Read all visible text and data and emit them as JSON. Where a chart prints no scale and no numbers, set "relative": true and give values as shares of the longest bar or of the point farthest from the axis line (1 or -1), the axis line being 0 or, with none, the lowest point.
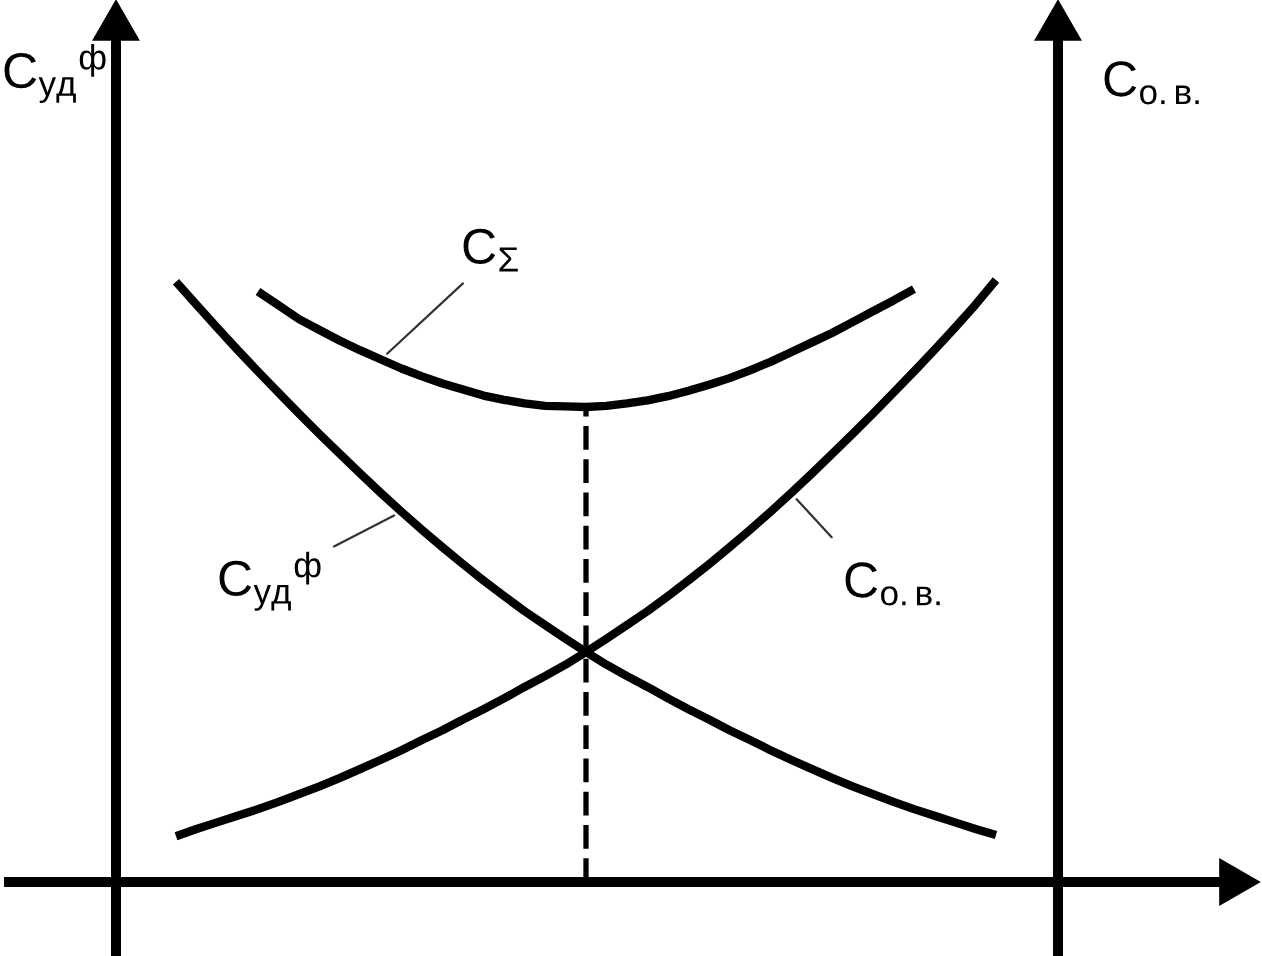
{
  "chart_data": {
    "type": "line",
    "relative": true,
    "ylabel": "С$_{уд}$$^{ф}$",
    "y2label": "С$_{о.в.}$",
    "categories": [
      null,
      null,
      null,
      null,
      null,
      null,
      null,
      null,
      null,
      null,
      null,
      null,
      null,
      null,
      null,
      null,
      null,
      null,
      null,
      null,
      null,
      null,
      null,
      null,
      null,
      null,
      null,
      null,
      null,
      null,
      null,
      null,
      null,
      null,
      null,
      null,
      null,
      null,
      null,
      null,
      null
    ],
    "series": [
      {
        "name": "С$_{уд}$$^{ф}$",
        "color": "#000000",
        "values": [
          0.997,
          0.959,
          0.921,
          0.884,
          0.848,
          0.813,
          0.778,
          0.744,
          0.711,
          0.678,
          0.646,
          0.615,
          0.585,
          0.556,
          0.528,
          0.501,
          0.475,
          0.45,
          0.427,
          0.404,
          0.382,
          0.361,
          0.342,
          0.324,
          0.305,
          0.287,
          0.27,
          0.252,
          0.236,
          0.219,
          0.203,
          0.188,
          0.173,
          0.159,
          0.146,
          0.133,
          0.121,
          0.11,
          0.099,
          0.088,
          0.078
        ]
      },
      {
        "name": "С$_{о.в.}$",
        "color": "#000000",
        "values": [
          0.076,
          0.088,
          0.099,
          0.11,
          0.121,
          0.133,
          0.146,
          0.159,
          0.173,
          0.188,
          0.203,
          0.219,
          0.236,
          0.252,
          0.27,
          0.287,
          0.305,
          0.324,
          0.342,
          0.361,
          0.382,
          0.404,
          0.427,
          0.45,
          0.475,
          0.501,
          0.528,
          0.556,
          0.585,
          0.615,
          0.646,
          0.678,
          0.711,
          0.744,
          0.778,
          0.813,
          0.848,
          0.884,
          0.921,
          0.959,
          1.0
        ]
      },
      {
        "name": "С$_{Σ}$",
        "color": "#000000",
        "values": [
          null,
          null,
          null,
          null,
          0.981,
          0.958,
          0.935,
          0.917,
          0.899,
          0.883,
          0.868,
          0.853,
          0.84,
          0.828,
          0.818,
          0.808,
          0.801,
          0.795,
          0.791,
          0.79,
          0.789,
          0.791,
          0.795,
          0.8,
          0.807,
          0.816,
          0.826,
          0.837,
          0.85,
          0.864,
          0.88,
          0.896,
          0.912,
          0.93,
          0.948,
          0.966,
          0.985,
          null,
          null,
          null,
          null
        ]
      }
    ]
  }
}
